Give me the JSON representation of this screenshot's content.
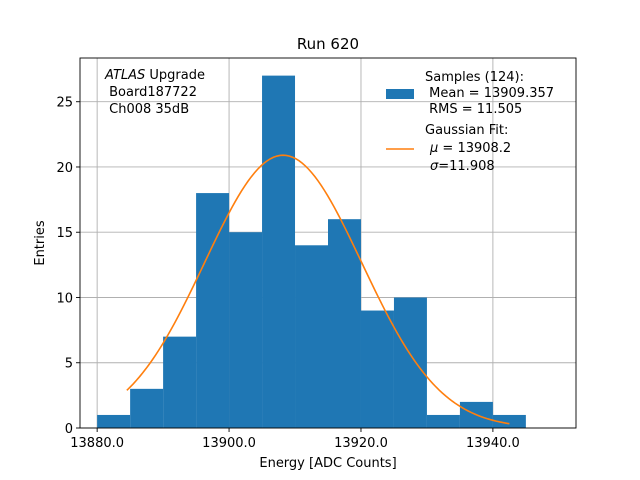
{
  "chart_data": {
    "type": "bar",
    "title": "Run 620",
    "xlabel": "Energy [ADC Counts]",
    "ylabel": "Entries",
    "xlim": [
      13877.4,
      13952.6
    ],
    "ylim": [
      0,
      28.35
    ],
    "grid": true,
    "legend_position": "top-right",
    "x_ticks": [
      {
        "value": 13880,
        "label": "13880.0"
      },
      {
        "value": 13900,
        "label": "13900.0"
      },
      {
        "value": 13920,
        "label": "13920.0"
      },
      {
        "value": 13940,
        "label": "13940.0"
      }
    ],
    "y_ticks": [
      {
        "value": 0,
        "label": "0"
      },
      {
        "value": 5,
        "label": "5"
      },
      {
        "value": 10,
        "label": "10"
      },
      {
        "value": 15,
        "label": "15"
      },
      {
        "value": 20,
        "label": "20"
      },
      {
        "value": 25,
        "label": "25"
      }
    ],
    "histogram": {
      "bin_edges": [
        13880,
        13885,
        13890,
        13895,
        13900,
        13905,
        13910,
        13915,
        13920,
        13925,
        13930,
        13935,
        13940,
        13945
      ],
      "counts": [
        1,
        3,
        7,
        18,
        15,
        27,
        14,
        16,
        9,
        10,
        1,
        2,
        1
      ],
      "color": "#1f77b4"
    },
    "fit": {
      "amplitude": 20.9,
      "mu": 13908.2,
      "sigma": 11.908,
      "x_range": [
        13884.5,
        13942.5
      ],
      "color": "#ff7f0e"
    },
    "annotation": {
      "line1_italic": "ATLAS",
      "line1_rest": " Upgrade",
      "line2": " Board187722",
      "line3": " Ch008 35dB"
    },
    "legend": {
      "samples_title": "Samples (124):",
      "samples_mean": " Mean = 13909.357",
      "samples_rms": " RMS = 11.505",
      "fit_title": "Gaussian Fit:",
      "fit_mu_symbol": "μ",
      "fit_mu_value": " = 13908.2",
      "fit_sigma_symbol": "σ",
      "fit_sigma_value": "=11.908"
    }
  }
}
